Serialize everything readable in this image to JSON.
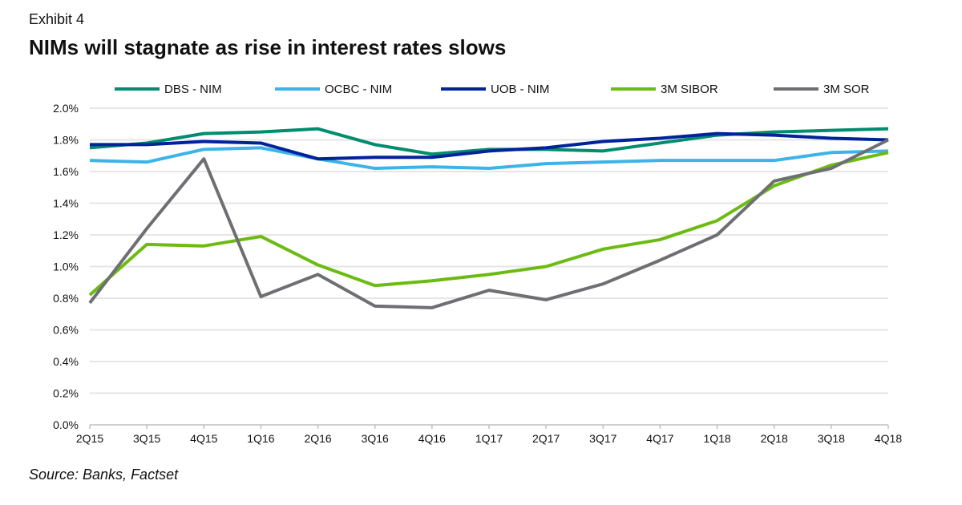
{
  "header": {
    "exhibit": "Exhibit 4",
    "title": "NIMs will stagnate as rise in interest rates slows"
  },
  "footer": {
    "source": "Source: Banks, Factset"
  },
  "chart_data": {
    "type": "line",
    "categories": [
      "2Q15",
      "3Q15",
      "4Q15",
      "1Q16",
      "2Q16",
      "3Q16",
      "4Q16",
      "1Q17",
      "2Q17",
      "3Q17",
      "4Q17",
      "1Q18",
      "2Q18",
      "3Q18",
      "4Q18"
    ],
    "ylim": [
      0,
      2.0
    ],
    "yticks": [
      "0.0%",
      "0.2%",
      "0.4%",
      "0.6%",
      "0.8%",
      "1.0%",
      "1.2%",
      "1.4%",
      "1.6%",
      "1.8%",
      "2.0%"
    ],
    "grid": true,
    "legend_position": "top",
    "series": [
      {
        "name": "DBS - NIM",
        "color": "#008C6E",
        "values": [
          1.75,
          1.78,
          1.84,
          1.85,
          1.87,
          1.77,
          1.71,
          1.74,
          1.74,
          1.73,
          1.78,
          1.83,
          1.85,
          1.86,
          1.87
        ]
      },
      {
        "name": "OCBC - NIM",
        "color": "#3DB4E8",
        "values": [
          1.67,
          1.66,
          1.74,
          1.75,
          1.68,
          1.62,
          1.63,
          1.62,
          1.65,
          1.66,
          1.67,
          1.67,
          1.67,
          1.72,
          1.73
        ]
      },
      {
        "name": "UOB - NIM",
        "color": "#00239C",
        "values": [
          1.77,
          1.77,
          1.79,
          1.78,
          1.68,
          1.69,
          1.69,
          1.73,
          1.75,
          1.79,
          1.81,
          1.84,
          1.83,
          1.81,
          1.8
        ]
      },
      {
        "name": "3M SIBOR",
        "color": "#6CBB12",
        "values": [
          0.82,
          1.14,
          1.13,
          1.19,
          1.01,
          0.88,
          0.91,
          0.95,
          1.0,
          1.11,
          1.17,
          1.29,
          1.51,
          1.64,
          1.72
        ]
      },
      {
        "name": "3M SOR",
        "color": "#6E6F73",
        "values": [
          0.77,
          1.24,
          1.68,
          0.81,
          0.95,
          0.75,
          0.74,
          0.85,
          0.79,
          0.89,
          1.04,
          1.2,
          1.54,
          1.62,
          1.8
        ]
      }
    ]
  }
}
